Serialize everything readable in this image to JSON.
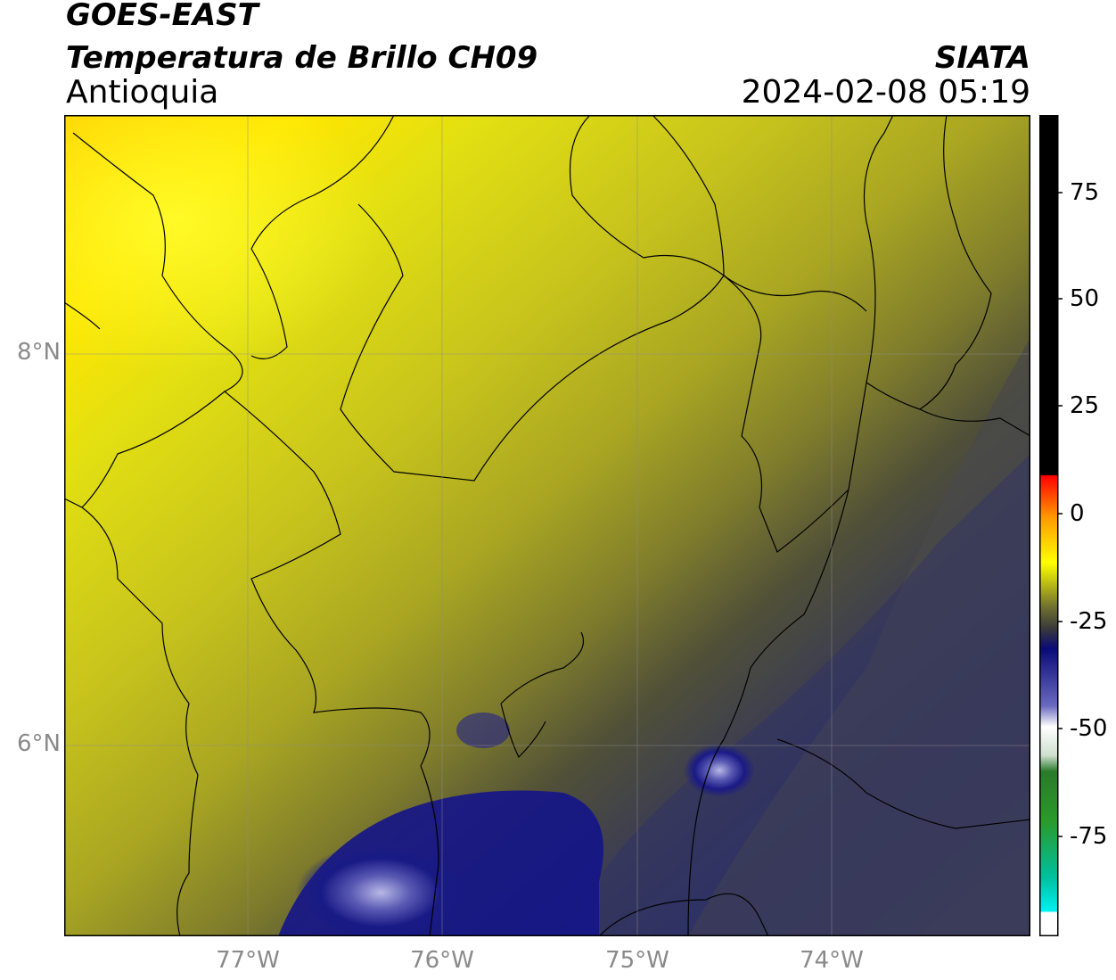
{
  "header": {
    "satellite": "GOES-EAST",
    "product": "Temperatura de Brillo CH09",
    "region": "Antioquia",
    "organization": "SIATA",
    "timestamp": "2024-02-08 05:19"
  },
  "map": {
    "lat_ticks": [
      {
        "label": "8°N",
        "value": 8
      },
      {
        "label": "6°N",
        "value": 6
      }
    ],
    "lon_ticks": [
      {
        "label": "77°W",
        "value": -77
      },
      {
        "label": "76°W",
        "value": -76
      },
      {
        "label": "75°W",
        "value": -75
      },
      {
        "label": "74°W",
        "value": -74
      }
    ]
  },
  "colorbar": {
    "ticks": [
      {
        "label": "75",
        "value": 75
      },
      {
        "label": "50",
        "value": 50
      },
      {
        "label": "25",
        "value": 25
      },
      {
        "label": "0",
        "value": 0
      },
      {
        "label": "-25",
        "value": -25
      },
      {
        "label": "-50",
        "value": -50
      },
      {
        "label": "-75",
        "value": -75
      }
    ],
    "colors": {
      "black": "#000000",
      "red": "#ff1a00",
      "orange": "#ff9900",
      "yellow": "#ffff00",
      "olive": "#8c8c1e",
      "grey": "#4a4a4a",
      "navy": "#0a0a78",
      "white": "#ffffff",
      "green": "#2a8a2a",
      "cyan": "#00e6e6"
    }
  }
}
